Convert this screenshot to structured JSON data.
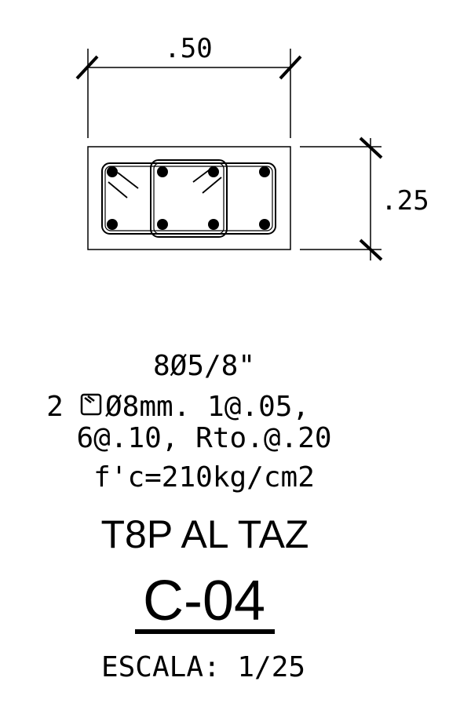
{
  "dimensions": {
    "width_label": ".50",
    "height_label": ".25"
  },
  "specs": {
    "line1": "8Ø5/8\"",
    "line2_prefix": "2",
    "line2_suffix": "Ø8mm. 1@.05,",
    "line3": "6@.10, Rto.@.20",
    "line4": "f'c=210kg/cm2"
  },
  "element": {
    "type_label": "T8P AL TAZ",
    "code": "C-04"
  },
  "scale": {
    "label": "ESCALA: 1/25"
  }
}
